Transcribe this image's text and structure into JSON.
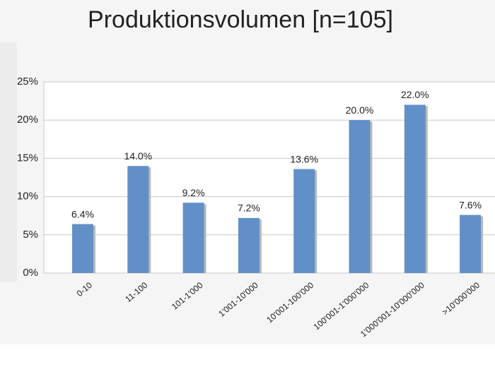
{
  "chart_data": {
    "type": "bar",
    "title": "Produktionsvolumen [n=105]",
    "categories": [
      "0-10",
      "11-100",
      "101-1'000",
      "1'001-10'000",
      "10'001-100'000",
      "100'001-1'000'000",
      "1'000'001-10'000'000",
      ">10'000'000"
    ],
    "values": [
      6.4,
      14.0,
      9.2,
      7.2,
      13.6,
      20.0,
      22.0,
      7.6
    ],
    "value_labels": [
      "6.4%",
      "14.0%",
      "9.2%",
      "7.2%",
      "13.6%",
      "20.0%",
      "22.0%",
      "7.6%"
    ],
    "color": "#6190c8",
    "ylim": [
      0,
      25
    ],
    "yticks": [
      {
        "value": 0,
        "label": "0%"
      },
      {
        "value": 5,
        "label": "5%"
      },
      {
        "value": 10,
        "label": "10%"
      },
      {
        "value": 15,
        "label": "15%"
      },
      {
        "value": 20,
        "label": "20%"
      },
      {
        "value": 25,
        "label": "25%"
      }
    ],
    "grid": true
  }
}
